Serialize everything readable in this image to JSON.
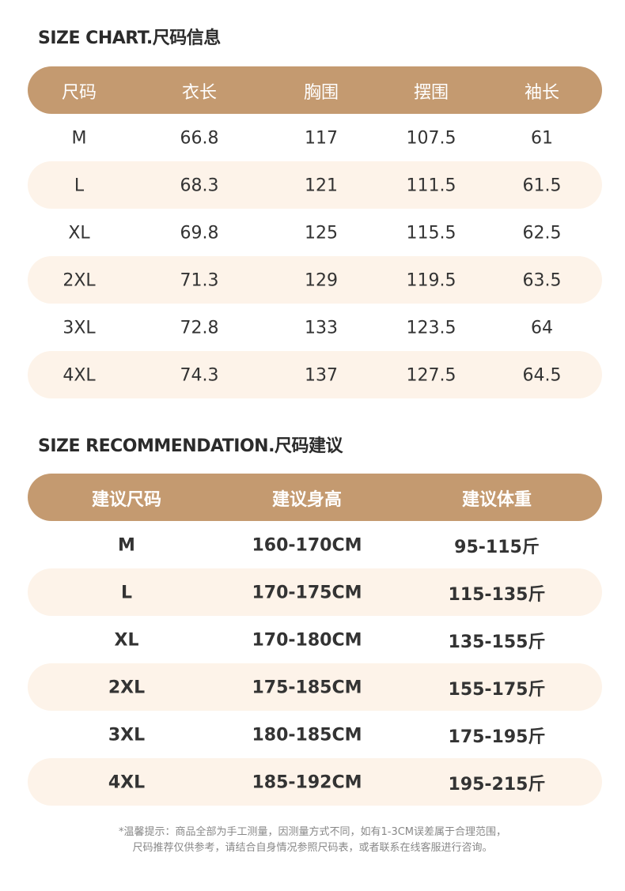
{
  "size_chart": {
    "title": "SIZE CHART.尺码信息",
    "headers": [
      "尺码",
      "衣长",
      "胸围",
      "摆围",
      "袖长"
    ],
    "rows": [
      [
        "M",
        "66.8",
        "117",
        "107.5",
        "61"
      ],
      [
        "L",
        "68.3",
        "121",
        "111.5",
        "61.5"
      ],
      [
        "XL",
        "69.8",
        "125",
        "115.5",
        "62.5"
      ],
      [
        "2XL",
        "71.3",
        "129",
        "119.5",
        "63.5"
      ],
      [
        "3XL",
        "72.8",
        "133",
        "123.5",
        "64"
      ],
      [
        "4XL",
        "74.3",
        "137",
        "127.5",
        "64.5"
      ]
    ]
  },
  "size_recommendation": {
    "title": "SIZE RECOMMENDATION.尺码建议",
    "headers": [
      "建议尺码",
      "建议身高",
      "建议体重"
    ],
    "rows": [
      [
        "M",
        "160-170CM",
        "95-115斤"
      ],
      [
        "L",
        "170-175CM",
        "115-135斤"
      ],
      [
        "XL",
        "170-180CM",
        "135-155斤"
      ],
      [
        "2XL",
        "175-185CM",
        "155-175斤"
      ],
      [
        "3XL",
        "180-185CM",
        "175-195斤"
      ],
      [
        "4XL",
        "185-192CM",
        "195-215斤"
      ]
    ]
  },
  "footnote": [
    "*温馨提示：商品全部为手工测量，因测量方式不同，如有1-3CM误差属于合理范围，",
    "尺码推荐仅供参考，请结合自身情况参照尺码表，或者联系在线客服进行咨询。"
  ]
}
